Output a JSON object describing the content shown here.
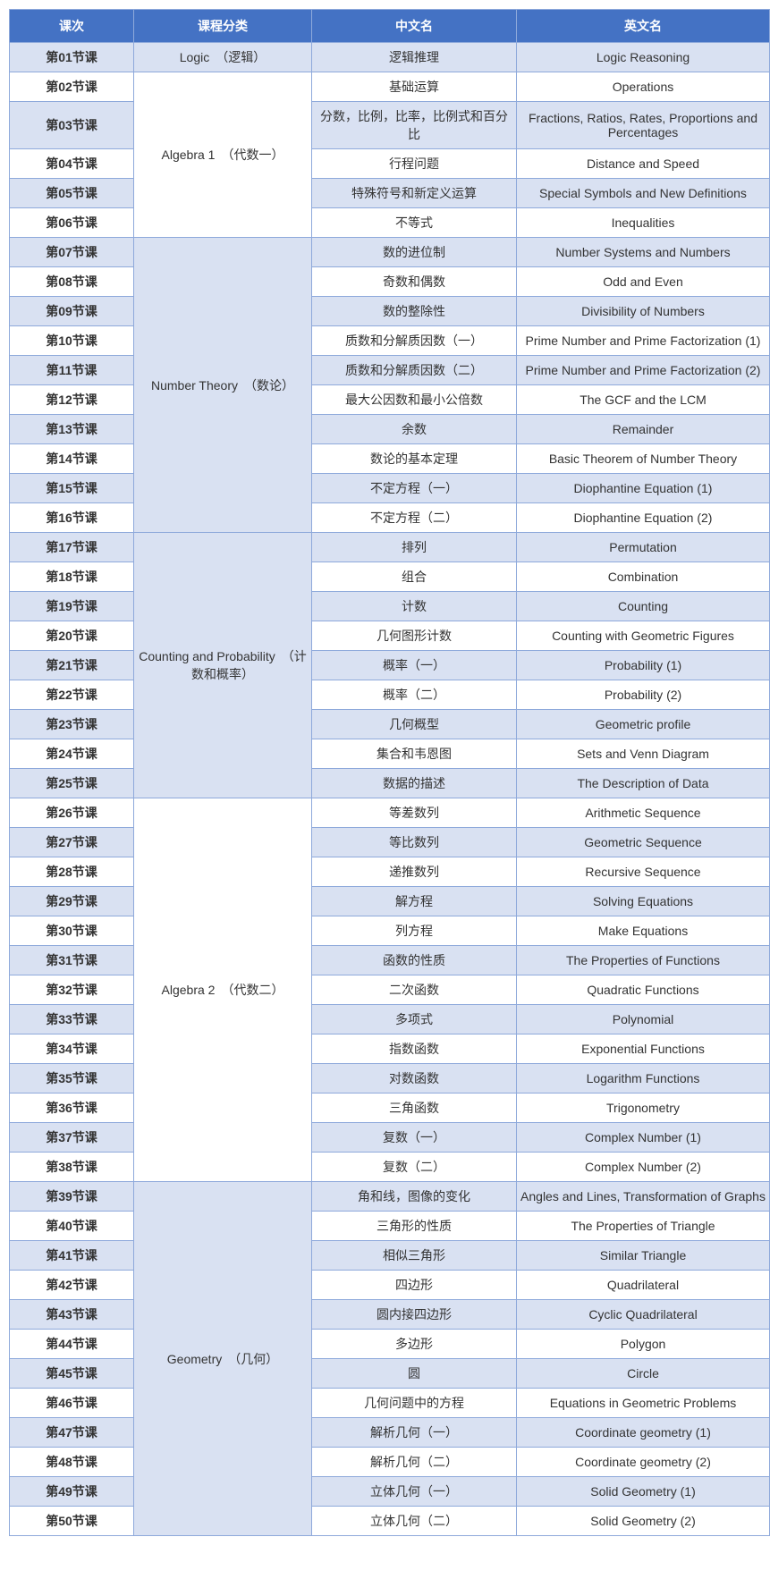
{
  "colors": {
    "header_bg": "#4472c4",
    "header_text": "#ffffff",
    "border": "#8ea9db",
    "shaded_bg": "#d9e1f2",
    "white_bg": "#ffffff",
    "text": "#333333"
  },
  "headers": {
    "lesson": "课次",
    "category": "课程分类",
    "cn": "中文名",
    "en": "英文名"
  },
  "categories": [
    {
      "label": "Logic　（逻辑）",
      "start": 0,
      "span": 1
    },
    {
      "label": "Algebra 1　（代数一）",
      "start": 1,
      "span": 5
    },
    {
      "label": "Number Theory　（数论）",
      "start": 6,
      "span": 10
    },
    {
      "label": "Counting and Probability　（计数和概率）",
      "start": 16,
      "span": 9
    },
    {
      "label": "Algebra 2　（代数二）",
      "start": 25,
      "span": 13
    },
    {
      "label": "Geometry　（几何）",
      "start": 38,
      "span": 12
    }
  ],
  "rows": [
    {
      "lesson": "第01节课",
      "cn": "逻辑推理",
      "en": "Logic Reasoning",
      "shade": true
    },
    {
      "lesson": "第02节课",
      "cn": "基础运算",
      "en": "Operations",
      "shade": false
    },
    {
      "lesson": "第03节课",
      "cn": "分数，比例，比率，比例式和百分比",
      "en": "Fractions, Ratios, Rates, Proportions and Percentages",
      "shade": true
    },
    {
      "lesson": "第04节课",
      "cn": "行程问题",
      "en": "Distance and Speed",
      "shade": false
    },
    {
      "lesson": "第05节课",
      "cn": "特殊符号和新定义运算",
      "en": "Special Symbols and New Definitions",
      "shade": true
    },
    {
      "lesson": "第06节课",
      "cn": "不等式",
      "en": "Inequalities",
      "shade": false
    },
    {
      "lesson": "第07节课",
      "cn": "数的进位制",
      "en": "Number Systems and Numbers",
      "shade": true
    },
    {
      "lesson": "第08节课",
      "cn": "奇数和偶数",
      "en": "Odd and Even",
      "shade": false
    },
    {
      "lesson": "第09节课",
      "cn": "数的整除性",
      "en": "Divisibility of Numbers",
      "shade": true
    },
    {
      "lesson": "第10节课",
      "cn": "质数和分解质因数（一）",
      "en": "Prime Number and Prime Factorization (1)",
      "shade": false
    },
    {
      "lesson": "第11节课",
      "cn": "质数和分解质因数（二）",
      "en": "Prime Number and Prime Factorization (2)",
      "shade": true
    },
    {
      "lesson": "第12节课",
      "cn": "最大公因数和最小公倍数",
      "en": "The GCF and the LCM",
      "shade": false
    },
    {
      "lesson": "第13节课",
      "cn": "余数",
      "en": "Remainder",
      "shade": true
    },
    {
      "lesson": "第14节课",
      "cn": "数论的基本定理",
      "en": "Basic Theorem of Number Theory",
      "shade": false
    },
    {
      "lesson": "第15节课",
      "cn": "不定方程（一）",
      "en": "Diophantine Equation (1)",
      "shade": true
    },
    {
      "lesson": "第16节课",
      "cn": "不定方程（二）",
      "en": "Diophantine Equation (2)",
      "shade": false
    },
    {
      "lesson": "第17节课",
      "cn": "排列",
      "en": "Permutation",
      "shade": true
    },
    {
      "lesson": "第18节课",
      "cn": "组合",
      "en": "Combination",
      "shade": false
    },
    {
      "lesson": "第19节课",
      "cn": "计数",
      "en": "Counting",
      "shade": true
    },
    {
      "lesson": "第20节课",
      "cn": "几何图形计数",
      "en": "Counting with Geometric Figures",
      "shade": false
    },
    {
      "lesson": "第21节课",
      "cn": "概率（一）",
      "en": "Probability (1)",
      "shade": true
    },
    {
      "lesson": "第22节课",
      "cn": "概率（二）",
      "en": "Probability (2)",
      "shade": false
    },
    {
      "lesson": "第23节课",
      "cn": "几何概型",
      "en": "Geometric profile",
      "shade": true
    },
    {
      "lesson": "第24节课",
      "cn": "集合和韦恩图",
      "en": "Sets and Venn Diagram",
      "shade": false
    },
    {
      "lesson": "第25节课",
      "cn": "数据的描述",
      "en": "The Description of Data",
      "shade": true
    },
    {
      "lesson": "第26节课",
      "cn": "等差数列",
      "en": "Arithmetic Sequence",
      "shade": false
    },
    {
      "lesson": "第27节课",
      "cn": "等比数列",
      "en": "Geometric Sequence",
      "shade": true
    },
    {
      "lesson": "第28节课",
      "cn": "递推数列",
      "en": "Recursive Sequence",
      "shade": false
    },
    {
      "lesson": "第29节课",
      "cn": "解方程",
      "en": "Solving Equations",
      "shade": true
    },
    {
      "lesson": "第30节课",
      "cn": "列方程",
      "en": "Make Equations",
      "shade": false
    },
    {
      "lesson": "第31节课",
      "cn": "函数的性质",
      "en": "The Properties of Functions",
      "shade": true
    },
    {
      "lesson": "第32节课",
      "cn": "二次函数",
      "en": "Quadratic Functions",
      "shade": false
    },
    {
      "lesson": "第33节课",
      "cn": "多项式",
      "en": "Polynomial",
      "shade": true
    },
    {
      "lesson": "第34节课",
      "cn": "指数函数",
      "en": "Exponential Functions",
      "shade": false
    },
    {
      "lesson": "第35节课",
      "cn": "对数函数",
      "en": "Logarithm Functions",
      "shade": true
    },
    {
      "lesson": "第36节课",
      "cn": "三角函数",
      "en": "Trigonometry",
      "shade": false
    },
    {
      "lesson": "第37节课",
      "cn": "复数（一）",
      "en": "Complex Number (1)",
      "shade": true
    },
    {
      "lesson": "第38节课",
      "cn": "复数（二）",
      "en": "Complex Number (2)",
      "shade": false
    },
    {
      "lesson": "第39节课",
      "cn": "角和线，图像的变化",
      "en": "Angles and Lines, Transformation of Graphs",
      "shade": true
    },
    {
      "lesson": "第40节课",
      "cn": "三角形的性质",
      "en": "The Properties of Triangle",
      "shade": false
    },
    {
      "lesson": "第41节课",
      "cn": "相似三角形",
      "en": "Similar Triangle",
      "shade": true
    },
    {
      "lesson": "第42节课",
      "cn": "四边形",
      "en": "Quadrilateral",
      "shade": false
    },
    {
      "lesson": "第43节课",
      "cn": "圆内接四边形",
      "en": "Cyclic Quadrilateral",
      "shade": true
    },
    {
      "lesson": "第44节课",
      "cn": "多边形",
      "en": "Polygon",
      "shade": false
    },
    {
      "lesson": "第45节课",
      "cn": "圆",
      "en": "Circle",
      "shade": true
    },
    {
      "lesson": "第46节课",
      "cn": "几何问题中的方程",
      "en": "Equations in Geometric Problems",
      "shade": false
    },
    {
      "lesson": "第47节课",
      "cn": "解析几何（一）",
      "en": "Coordinate geometry (1)",
      "shade": true
    },
    {
      "lesson": "第48节课",
      "cn": "解析几何（二）",
      "en": "Coordinate geometry (2)",
      "shade": false
    },
    {
      "lesson": "第49节课",
      "cn": "立体几何（一）",
      "en": "Solid Geometry (1)",
      "shade": true
    },
    {
      "lesson": "第50节课",
      "cn": "立体几何（二）",
      "en": "Solid Geometry (2)",
      "shade": false
    }
  ]
}
